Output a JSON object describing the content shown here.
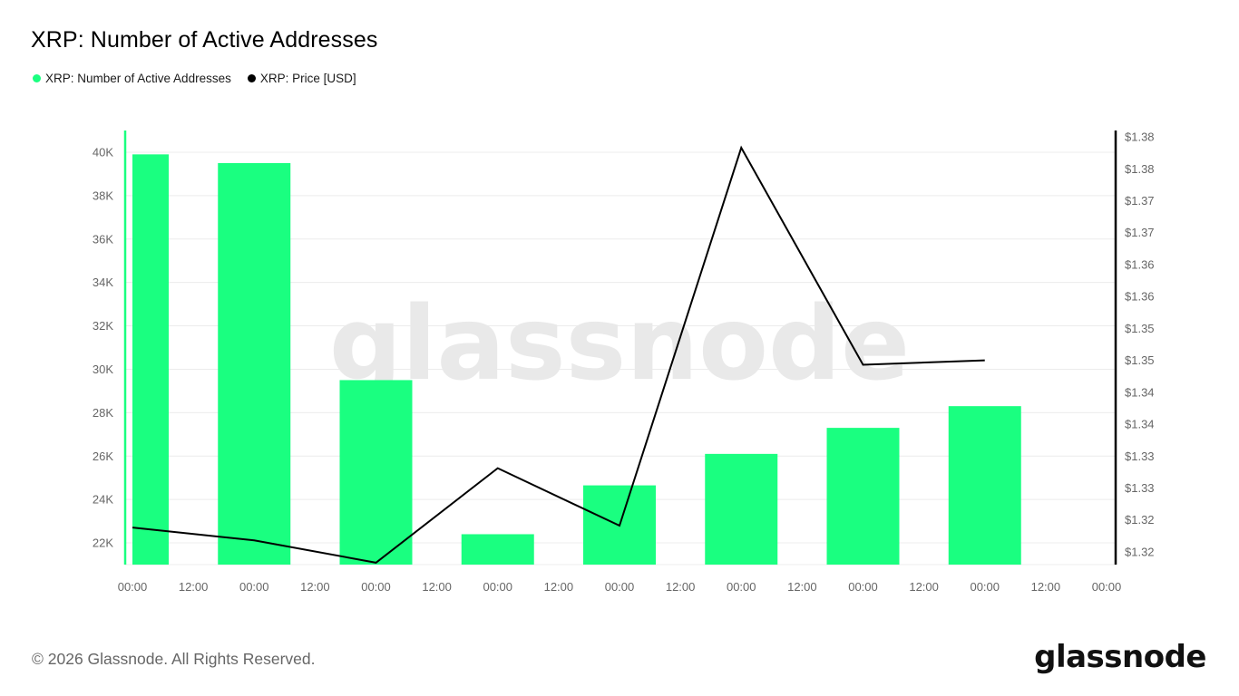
{
  "header": {
    "title": "XRP: Number of Active Addresses"
  },
  "legend": [
    {
      "label": "XRP: Number of Active Addresses",
      "color": "#1aff80"
    },
    {
      "label": "XRP: Price [USD]",
      "color": "#000000"
    }
  ],
  "watermark": "glassnode",
  "footer": {
    "copyright": "© 2026 Glassnode. All Rights Reserved.",
    "logo_text": "glassnode"
  },
  "chart_data": {
    "type": "bar",
    "title": "XRP: Number of Active Addresses",
    "x_tick_labels": [
      "00:00",
      "12:00",
      "00:00",
      "12:00",
      "00:00",
      "12:00",
      "00:00",
      "12:00",
      "00:00",
      "12:00",
      "00:00",
      "12:00",
      "00:00",
      "12:00",
      "00:00",
      "12:00",
      "00:00"
    ],
    "left_axis": {
      "tick_labels": [
        "22K",
        "24K",
        "26K",
        "28K",
        "30K",
        "32K",
        "34K",
        "36K",
        "38K",
        "40K"
      ],
      "ticks": [
        22000,
        24000,
        26000,
        28000,
        30000,
        32000,
        34000,
        36000,
        38000,
        40000
      ],
      "range": [
        21000,
        41000
      ]
    },
    "right_axis": {
      "tick_labels": [
        "$1.32",
        "$1.32",
        "$1.33",
        "$1.33",
        "$1.34",
        "$1.34",
        "$1.35",
        "$1.35",
        "$1.36",
        "$1.36",
        "$1.37",
        "$1.37",
        "$1.38",
        "$1.38"
      ],
      "ticks": [
        1.3185,
        1.3235,
        1.3285,
        1.3335,
        1.3385,
        1.3435,
        1.3485,
        1.3535,
        1.3585,
        1.3635,
        1.3685,
        1.3735,
        1.3785,
        1.3835
      ],
      "range": [
        1.3165,
        1.3845
      ]
    },
    "grid": true,
    "legend_position": "top-left",
    "series": [
      {
        "name": "XRP: Number of Active Addresses",
        "type": "bar",
        "axis": "left",
        "color": "#1aff80",
        "values": [
          39900,
          39500,
          29500,
          22400,
          24650,
          26100,
          27300,
          28300
        ]
      },
      {
        "name": "XRP: Price [USD]",
        "type": "line",
        "axis": "right",
        "color": "#000000",
        "values": [
          1.3223,
          1.3203,
          1.3168,
          1.3316,
          1.3226,
          1.3818,
          1.3478,
          1.3485
        ]
      }
    ]
  }
}
